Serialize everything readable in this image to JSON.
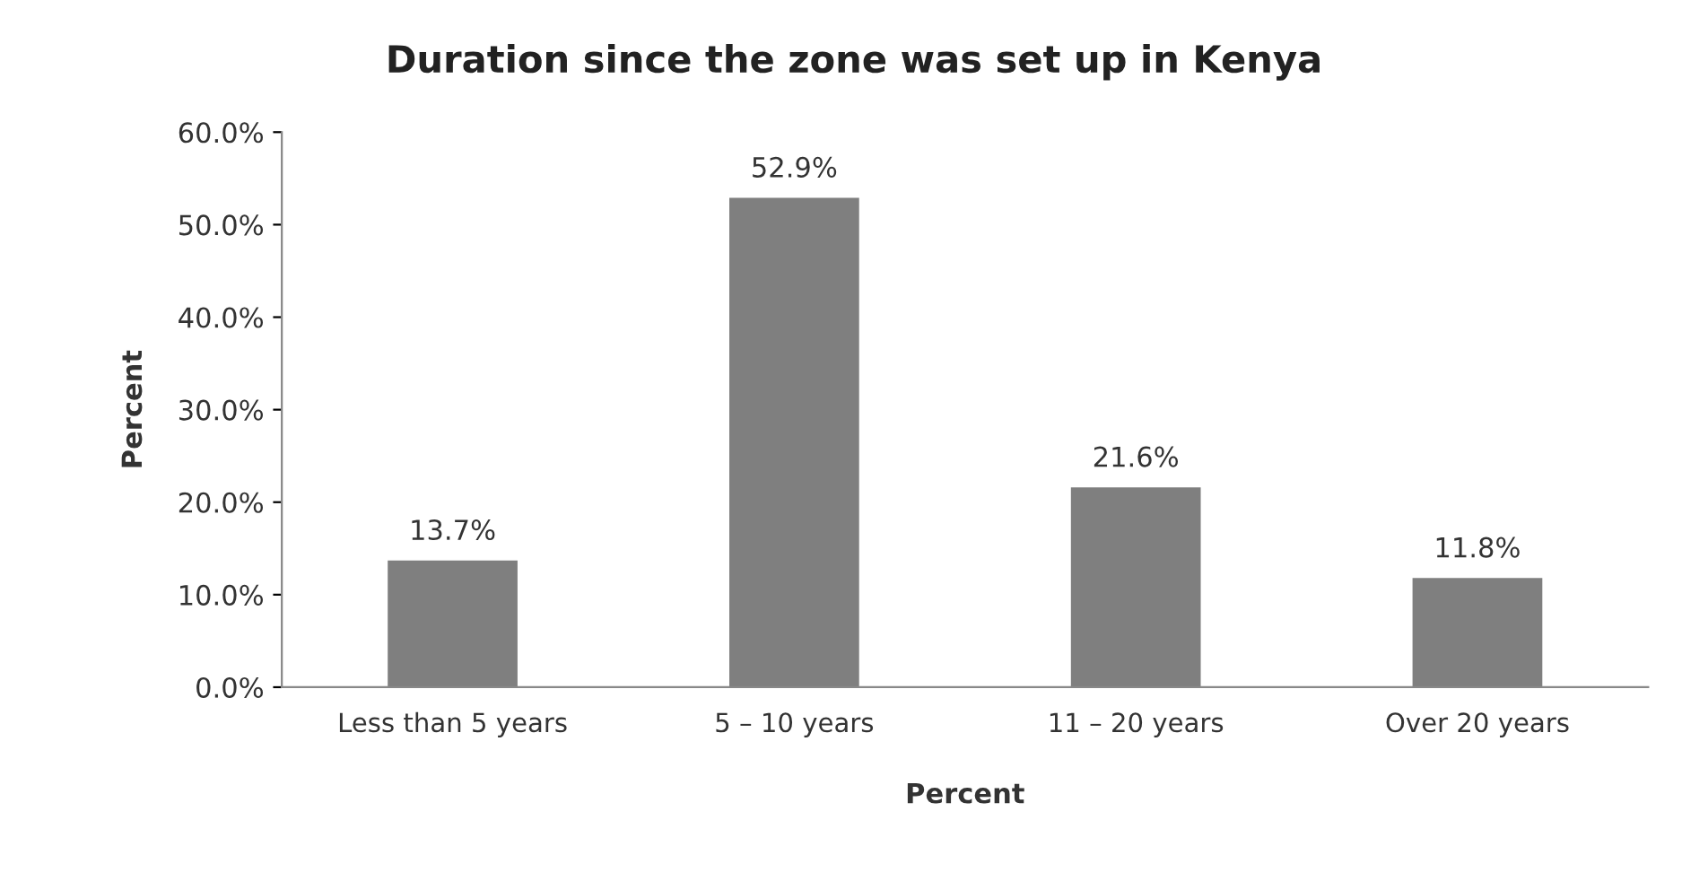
{
  "chart_data": {
    "type": "bar",
    "title": "Duration since the zone was set up in Kenya",
    "categories": [
      "Less than 5 years",
      "5 – 10 years",
      "11 – 20 years",
      "Over 20 years"
    ],
    "values": [
      13.7,
      52.9,
      21.6,
      11.8
    ],
    "value_labels": [
      "13.7%",
      "52.9%",
      "21.6%",
      "11.8%"
    ],
    "color": "#7f7f7f",
    "xlabel": "Percent",
    "ylabel": "Percent",
    "ylim": [
      0,
      60
    ],
    "yticks": [
      {
        "value": 0,
        "label": "0.0%"
      },
      {
        "value": 10,
        "label": "10.0%"
      },
      {
        "value": 20,
        "label": "20.0%"
      },
      {
        "value": 30,
        "label": "30.0%"
      },
      {
        "value": 40,
        "label": "40.0%"
      },
      {
        "value": 50,
        "label": "50.0%"
      },
      {
        "value": 60,
        "label": "60.0%"
      }
    ],
    "grid": false,
    "legend": false
  }
}
